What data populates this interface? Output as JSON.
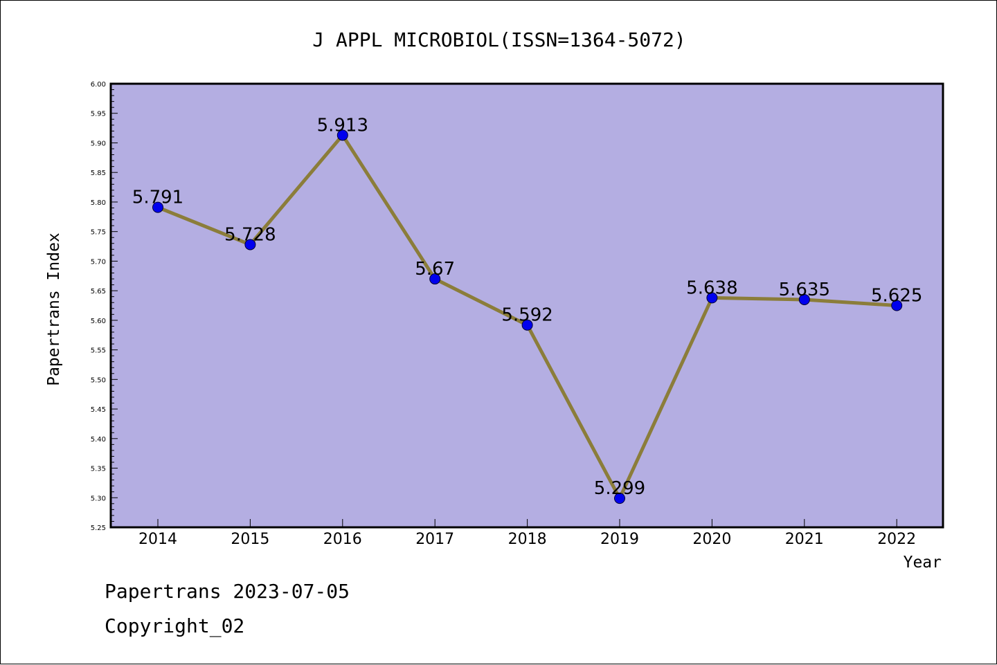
{
  "chart_data": {
    "type": "line",
    "title": "J APPL MICROBIOL(ISSN=1364-5072)",
    "xlabel": "Year",
    "ylabel": "Papertrans Index",
    "categories": [
      "2014",
      "2015",
      "2016",
      "2017",
      "2018",
      "2019",
      "2020",
      "2021",
      "2022"
    ],
    "values": [
      5.791,
      5.728,
      5.913,
      5.67,
      5.592,
      5.299,
      5.638,
      5.635,
      5.625
    ],
    "data_labels": [
      "5.791",
      "5.728",
      "5.913",
      "5.67",
      "5.592",
      "5.299",
      "5.638",
      "5.635",
      "5.625"
    ],
    "ylim": [
      5.25,
      6.0
    ],
    "yticks": [
      "5.25",
      "5.30",
      "5.35",
      "5.40",
      "5.45",
      "5.50",
      "5.55",
      "5.60",
      "5.65",
      "5.70",
      "5.75",
      "5.80",
      "5.85",
      "5.90",
      "5.95",
      "6.00"
    ],
    "grid": false,
    "line_color": "#8b7d3a",
    "marker_color": "#0000ee",
    "plot_background": "#b4aee2"
  },
  "footer": {
    "line1": "Papertrans 2023-07-05",
    "line2": "Copyright_02"
  }
}
